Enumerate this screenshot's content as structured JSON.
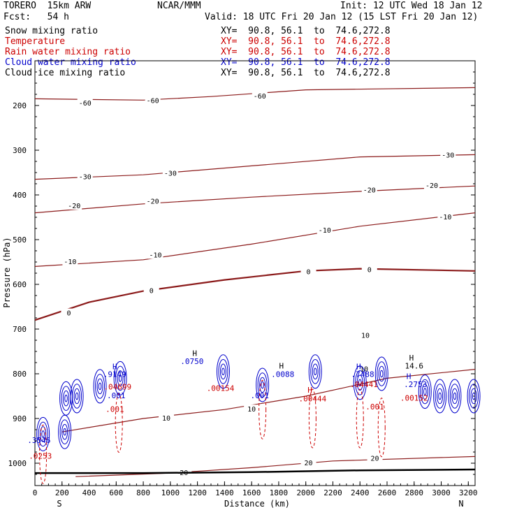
{
  "header": {
    "model": "TORERO  15km ARW",
    "center": "NCAR/MMM",
    "init": "Init: 12 UTC Wed 18 Jan 12",
    "fcst": "Fcst:   54 h",
    "valid": "Valid: 18 UTC Fri 20 Jan 12 (15 LST Fri 20 Jan 12)"
  },
  "fields": [
    {
      "name": "Snow mixing ratio",
      "xy": "XY=  90.8, 56.1  to  74.6,272.8",
      "color": "#000000"
    },
    {
      "name": "Temperature",
      "xy": "XY=  90.8, 56.1  to  74.6,272.8",
      "color": "#cc0000"
    },
    {
      "name": "Rain water mixing ratio",
      "xy": "XY=  90.8, 56.1  to  74.6,272.8",
      "color": "#cc0000"
    },
    {
      "name": "Cloud water mixing ratio",
      "xy": "XY=  90.8, 56.1  to  74.6,272.8",
      "color": "#0000cc"
    },
    {
      "name": "Cloud ice mixing ratio",
      "xy": "XY=  90.8, 56.1  to  74.6,272.8",
      "color": "#000000"
    }
  ],
  "chart_data": {
    "type": "contour-cross-section",
    "xlabel": "Distance (km)",
    "ylabel": "Pressure (hPa)",
    "xlim": [
      0,
      3250
    ],
    "ylim": [
      1050,
      100
    ],
    "x_ticks": [
      0,
      200,
      400,
      600,
      800,
      1000,
      1200,
      1400,
      1600,
      1800,
      2000,
      2200,
      2400,
      2600,
      2800,
      3000,
      3200
    ],
    "y_ticks": [
      200,
      300,
      400,
      500,
      600,
      700,
      800,
      900,
      1000
    ],
    "x_end_labels": {
      "left": "S",
      "right": "N"
    },
    "surface_pressure": [
      {
        "x": 0,
        "p": 1022
      },
      {
        "x": 800,
        "p": 1022
      },
      {
        "x": 1600,
        "p": 1020
      },
      {
        "x": 2400,
        "p": 1016
      },
      {
        "x": 3250,
        "p": 1014
      }
    ],
    "temperature_contours": [
      {
        "label": "-60",
        "label_at": [
          {
            "x": 370,
            "p": 195
          },
          {
            "x": 870,
            "p": 190
          },
          {
            "x": 1660,
            "p": 180
          }
        ],
        "points": [
          {
            "x": 0,
            "p": 185
          },
          {
            "x": 800,
            "p": 188
          },
          {
            "x": 1300,
            "p": 180
          },
          {
            "x": 2000,
            "p": 165
          },
          {
            "x": 3250,
            "p": 160
          }
        ]
      },
      {
        "label": "-30",
        "label_at": [
          {
            "x": 370,
            "p": 360
          },
          {
            "x": 1000,
            "p": 352
          },
          {
            "x": 3050,
            "p": 312
          }
        ],
        "points": [
          {
            "x": 0,
            "p": 365
          },
          {
            "x": 800,
            "p": 355
          },
          {
            "x": 1600,
            "p": 335
          },
          {
            "x": 2400,
            "p": 315
          },
          {
            "x": 3250,
            "p": 310
          }
        ]
      },
      {
        "label": "-20",
        "label_at": [
          {
            "x": 290,
            "p": 425
          },
          {
            "x": 870,
            "p": 415
          },
          {
            "x": 2470,
            "p": 390
          },
          {
            "x": 2930,
            "p": 380
          }
        ],
        "points": [
          {
            "x": 0,
            "p": 440
          },
          {
            "x": 800,
            "p": 420
          },
          {
            "x": 1600,
            "p": 405
          },
          {
            "x": 2400,
            "p": 392
          },
          {
            "x": 3250,
            "p": 380
          }
        ]
      },
      {
        "label": "-10",
        "label_at": [
          {
            "x": 260,
            "p": 550
          },
          {
            "x": 890,
            "p": 535
          },
          {
            "x": 2140,
            "p": 480
          },
          {
            "x": 3030,
            "p": 450
          }
        ],
        "points": [
          {
            "x": 0,
            "p": 560
          },
          {
            "x": 800,
            "p": 545
          },
          {
            "x": 1600,
            "p": 510
          },
          {
            "x": 2400,
            "p": 470
          },
          {
            "x": 3250,
            "p": 440
          }
        ]
      },
      {
        "label": "0",
        "bold": true,
        "label_at": [
          {
            "x": 250,
            "p": 665
          },
          {
            "x": 860,
            "p": 615
          },
          {
            "x": 2020,
            "p": 573
          },
          {
            "x": 2470,
            "p": 568
          }
        ],
        "points": [
          {
            "x": 0,
            "p": 680
          },
          {
            "x": 400,
            "p": 640
          },
          {
            "x": 800,
            "p": 615
          },
          {
            "x": 1400,
            "p": 590
          },
          {
            "x": 2000,
            "p": 570
          },
          {
            "x": 2400,
            "p": 565
          },
          {
            "x": 3250,
            "p": 570
          }
        ]
      },
      {
        "label": "10",
        "label_at": [
          {
            "x": 1600,
            "p": 880
          },
          {
            "x": 2440,
            "p": 715
          },
          {
            "x": 2430,
            "p": 790
          },
          {
            "x": 970,
            "p": 900
          }
        ],
        "points": [
          {
            "x": 200,
            "p": 930
          },
          {
            "x": 800,
            "p": 900
          },
          {
            "x": 1400,
            "p": 880
          },
          {
            "x": 2000,
            "p": 850
          },
          {
            "x": 2600,
            "p": 810
          },
          {
            "x": 3250,
            "p": 790
          }
        ]
      },
      {
        "label": "20",
        "label_at": [
          {
            "x": 1100,
            "p": 1022
          },
          {
            "x": 2020,
            "p": 1000
          },
          {
            "x": 2510,
            "p": 990
          }
        ],
        "points": [
          {
            "x": 300,
            "p": 1030
          },
          {
            "x": 1000,
            "p": 1022
          },
          {
            "x": 1600,
            "p": 1010
          },
          {
            "x": 2200,
            "p": 995
          },
          {
            "x": 3250,
            "p": 985
          }
        ]
      }
    ],
    "markers": [
      {
        "text": "H",
        "x": 590,
        "p": 790,
        "color": "#0000cc"
      },
      {
        "text": ".9149",
        "x": 590,
        "p": 807,
        "color": "#0000cc"
      },
      {
        "text": ".04699",
        "x": 610,
        "p": 835,
        "color": "#cc0000"
      },
      {
        "text": ".001",
        "x": 600,
        "p": 855,
        "color": "#0000cc"
      },
      {
        "text": ".001",
        "x": 590,
        "p": 885,
        "color": "#cc0000"
      },
      {
        "text": "H",
        "x": 1180,
        "p": 760,
        "color": "#000000"
      },
      {
        "text": ".0750",
        "x": 1160,
        "p": 778,
        "color": "#0000cc"
      },
      {
        "text": ".00154",
        "x": 1370,
        "p": 838,
        "color": "#cc0000"
      },
      {
        "text": ".001",
        "x": 1660,
        "p": 855,
        "color": "#0000cc"
      },
      {
        "text": "H",
        "x": 1820,
        "p": 788,
        "color": "#000000"
      },
      {
        "text": ".0088",
        "x": 1830,
        "p": 807,
        "color": "#0000cc"
      },
      {
        "text": "H",
        "x": 2030,
        "p": 842,
        "color": "#cc0000"
      },
      {
        "text": ".00444",
        "x": 2050,
        "p": 862,
        "color": "#cc0000"
      },
      {
        "text": "H",
        "x": 2390,
        "p": 790,
        "color": "#0000cc"
      },
      {
        "text": ".7488",
        "x": 2420,
        "p": 807,
        "color": "#0000cc"
      },
      {
        "text": ".04441",
        "x": 2430,
        "p": 830,
        "color": "#cc0000"
      },
      {
        "text": ".001",
        "x": 2510,
        "p": 880,
        "color": "#cc0000"
      },
      {
        "text": "H",
        "x": 2780,
        "p": 770,
        "color": "#000000"
      },
      {
        "text": "14.6",
        "x": 2800,
        "p": 788,
        "color": "#000000"
      },
      {
        "text": "H",
        "x": 2760,
        "p": 812,
        "color": "#0000cc"
      },
      {
        "text": ".2753",
        "x": 2810,
        "p": 830,
        "color": "#0000cc"
      },
      {
        "text": ".00152",
        "x": 2800,
        "p": 860,
        "color": "#cc0000"
      },
      {
        "text": ".3546",
        "x": 30,
        "p": 955,
        "color": "#0000cc"
      },
      {
        "text": ".0253",
        "x": 40,
        "p": 990,
        "color": "#cc0000"
      }
    ],
    "cloud_water_cells": [
      {
        "x": 480,
        "p": 828
      },
      {
        "x": 310,
        "p": 850
      },
      {
        "x": 230,
        "p": 855
      },
      {
        "x": 630,
        "p": 810
      },
      {
        "x": 1390,
        "p": 795
      },
      {
        "x": 1680,
        "p": 825
      },
      {
        "x": 2070,
        "p": 795
      },
      {
        "x": 2400,
        "p": 820
      },
      {
        "x": 2560,
        "p": 800
      },
      {
        "x": 2880,
        "p": 840
      },
      {
        "x": 2990,
        "p": 850
      },
      {
        "x": 3100,
        "p": 850
      },
      {
        "x": 3240,
        "p": 850
      },
      {
        "x": 220,
        "p": 930
      },
      {
        "x": 60,
        "p": 935
      }
    ],
    "rain_cells": [
      {
        "x": 620,
        "p": 910
      },
      {
        "x": 1680,
        "p": 880
      },
      {
        "x": 2050,
        "p": 900
      },
      {
        "x": 2400,
        "p": 900
      },
      {
        "x": 2560,
        "p": 920
      },
      {
        "x": 60,
        "p": 980
      }
    ]
  }
}
